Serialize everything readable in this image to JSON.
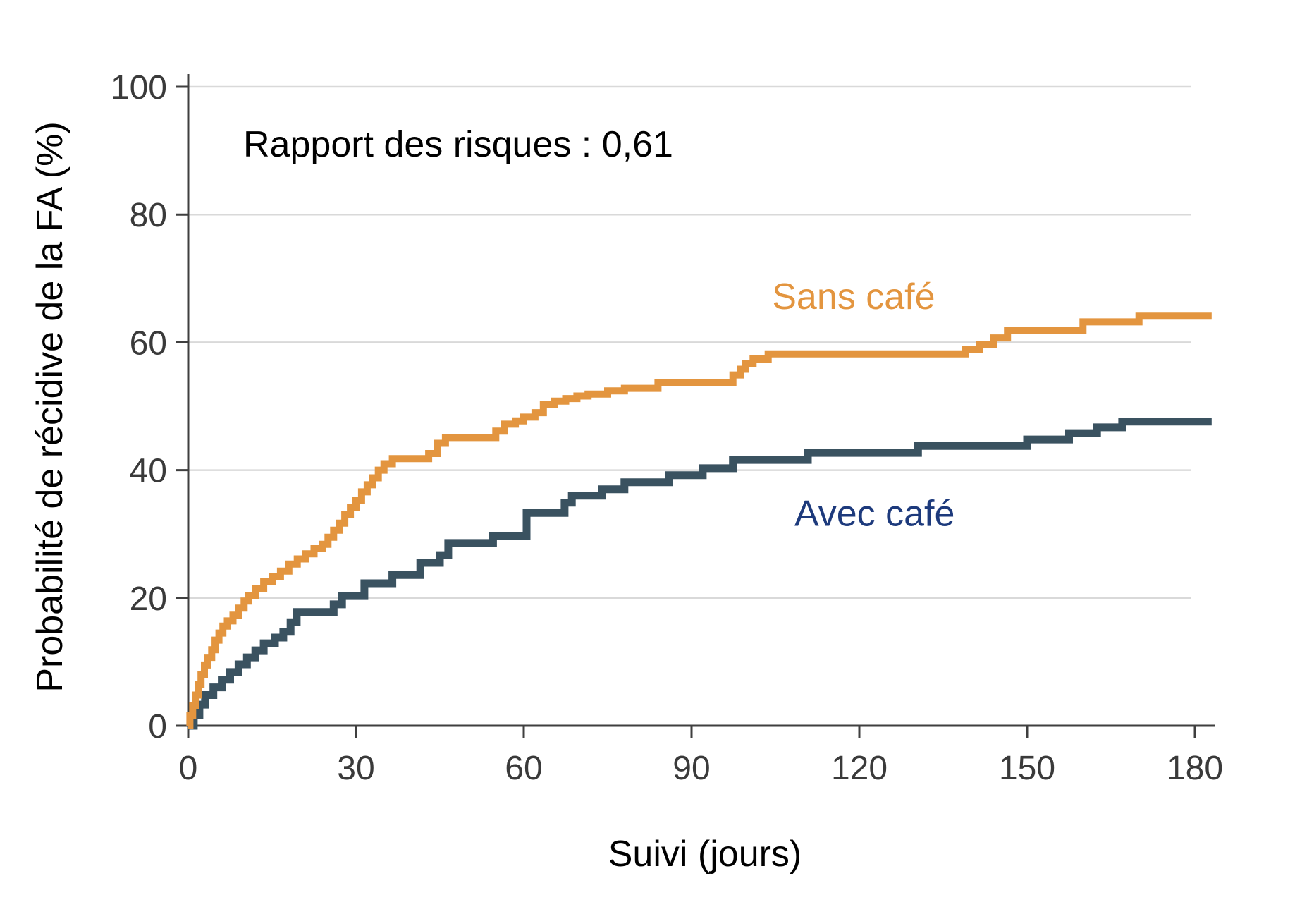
{
  "figure": {
    "background": "#ffffff"
  },
  "colors": {
    "sans_cafe_orange": "#E3953F",
    "avec_cafe_line": "#3A5260",
    "avec_cafe_label": "#1D3A7C",
    "grid": "#D9D9D9",
    "axis": "#3F3F3F",
    "tick_text": "#3A3A3A",
    "annotation_text": "#000000"
  },
  "chart_data": {
    "type": "line",
    "subtype": "kaplan-meier-step",
    "title": "",
    "annotation": "Rapport des risques : 0,61",
    "hazard_ratio": "0,61",
    "xlabel": "Suivi (jours)",
    "ylabel": "Probabilité de récidive de la FA (%)",
    "xlim": [
      0,
      180
    ],
    "ylim": [
      0,
      100
    ],
    "x_ticks": [
      0,
      30,
      60,
      90,
      120,
      150,
      180
    ],
    "y_ticks": [
      0,
      20,
      40,
      60,
      80,
      100
    ],
    "grid": "horizontal-only",
    "legend_position": "inline-curve-labels",
    "curve_end_day": 183,
    "series": [
      {
        "name": "Sans café",
        "color": "#E3953F",
        "label_color": "#E3953F",
        "label_anchor_day": 104.4,
        "label_anchor_pct": 67.2,
        "final_pct": 64.1,
        "points": [
          [
            0.3,
            1.6
          ],
          [
            0.8,
            3.2
          ],
          [
            1.3,
            4.8
          ],
          [
            1.8,
            6.4
          ],
          [
            2.3,
            8.0
          ],
          [
            2.9,
            9.5
          ],
          [
            3.5,
            10.7
          ],
          [
            4.2,
            11.9
          ],
          [
            4.8,
            13.4
          ],
          [
            5.5,
            14.5
          ],
          [
            6.2,
            15.6
          ],
          [
            7,
            16.4
          ],
          [
            8,
            17.3
          ],
          [
            9,
            18.4
          ],
          [
            10,
            19.5
          ],
          [
            10.8,
            20.4
          ],
          [
            12,
            21.5
          ],
          [
            13.5,
            22.6
          ],
          [
            15,
            23.4
          ],
          [
            16.5,
            24.2
          ],
          [
            18,
            25.3
          ],
          [
            19.5,
            26.1
          ],
          [
            21,
            26.9
          ],
          [
            22.5,
            27.7
          ],
          [
            24,
            28.4
          ],
          [
            25,
            29.5
          ],
          [
            26,
            30.6
          ],
          [
            27,
            31.7
          ],
          [
            28,
            33.0
          ],
          [
            29,
            34.2
          ],
          [
            30,
            35.3
          ],
          [
            31,
            36.6
          ],
          [
            32,
            37.7
          ],
          [
            33,
            38.8
          ],
          [
            34,
            40.0
          ],
          [
            35,
            41.0
          ],
          [
            36.5,
            41.8
          ],
          [
            43,
            42.6
          ],
          [
            44.5,
            44.2
          ],
          [
            46,
            45.1
          ],
          [
            55,
            46.1
          ],
          [
            56.5,
            47.2
          ],
          [
            58.5,
            47.7
          ],
          [
            60,
            48.3
          ],
          [
            62,
            49.0
          ],
          [
            63.5,
            50.3
          ],
          [
            65.5,
            50.8
          ],
          [
            67.5,
            51.2
          ],
          [
            69.5,
            51.6
          ],
          [
            71.5,
            51.9
          ],
          [
            75,
            52.4
          ],
          [
            78,
            52.8
          ],
          [
            84,
            53.7
          ],
          [
            97.4,
            54.9
          ],
          [
            98.7,
            55.8
          ],
          [
            99.7,
            56.7
          ],
          [
            101,
            57.4
          ],
          [
            103.7,
            58.2
          ],
          [
            139,
            58.9
          ],
          [
            141.5,
            59.7
          ],
          [
            144,
            60.7
          ],
          [
            146.5,
            61.9
          ],
          [
            160,
            63.2
          ],
          [
            170,
            64.1
          ]
        ]
      },
      {
        "name": "Avec café",
        "color": "#3A5260",
        "label_color": "#1D3A7C",
        "label_anchor_day": 108.4,
        "label_anchor_pct": 33.3,
        "final_pct": 47.6,
        "points": [
          [
            1,
            1.7
          ],
          [
            2,
            3.3
          ],
          [
            3,
            4.8
          ],
          [
            4.5,
            6.0
          ],
          [
            6,
            7.2
          ],
          [
            7.5,
            8.4
          ],
          [
            9,
            9.6
          ],
          [
            10.5,
            10.7
          ],
          [
            12,
            11.8
          ],
          [
            13.5,
            12.9
          ],
          [
            15.5,
            13.8
          ],
          [
            17,
            14.7
          ],
          [
            18.3,
            16.2
          ],
          [
            19.4,
            17.8
          ],
          [
            26,
            19.0
          ],
          [
            27.5,
            20.3
          ],
          [
            31.5,
            22.3
          ],
          [
            36.5,
            23.6
          ],
          [
            41.5,
            25.5
          ],
          [
            45,
            26.7
          ],
          [
            46.5,
            28.6
          ],
          [
            54.5,
            29.7
          ],
          [
            60.5,
            33.3
          ],
          [
            67.3,
            34.9
          ],
          [
            68.6,
            36.0
          ],
          [
            74,
            37.0
          ],
          [
            78,
            38.1
          ],
          [
            86,
            39.2
          ],
          [
            92,
            40.3
          ],
          [
            97.4,
            41.6
          ],
          [
            110.8,
            42.7
          ],
          [
            130.5,
            43.8
          ],
          [
            150,
            44.8
          ],
          [
            157.5,
            45.8
          ],
          [
            162.5,
            46.7
          ],
          [
            167,
            47.6
          ]
        ]
      }
    ]
  }
}
